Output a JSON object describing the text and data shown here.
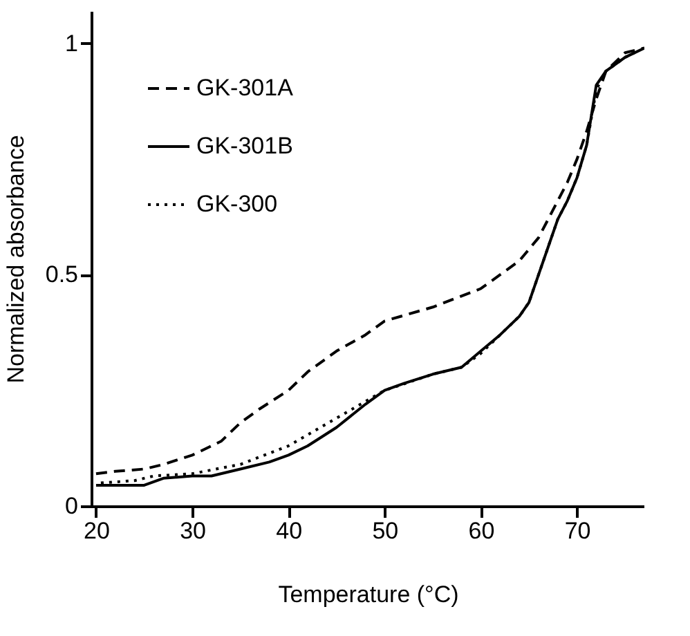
{
  "chart_data": {
    "type": "line",
    "xlabel": "Temperature (°C)",
    "ylabel": "Normalized absorbance",
    "xlim": [
      19.5,
      77
    ],
    "ylim": [
      0,
      1.07
    ],
    "xticks": [
      20,
      30,
      40,
      50,
      60,
      70
    ],
    "yticks": [
      0,
      {
        "value": 0.5,
        "label": "0.5"
      },
      1
    ],
    "legend": "top left",
    "series": [
      {
        "name": "GK-301A",
        "color": "#000000",
        "line_style": "dashed",
        "x": [
          20,
          22,
          25,
          27,
          30,
          33,
          35,
          37,
          40,
          42,
          45,
          48,
          50,
          55,
          60,
          62,
          64,
          66,
          67,
          68,
          69,
          70,
          71,
          72,
          73,
          75,
          77
        ],
        "values": [
          0.07,
          0.075,
          0.08,
          0.09,
          0.11,
          0.14,
          0.18,
          0.21,
          0.25,
          0.29,
          0.335,
          0.37,
          0.4,
          0.43,
          0.47,
          0.5,
          0.53,
          0.58,
          0.62,
          0.66,
          0.7,
          0.75,
          0.81,
          0.88,
          0.94,
          0.98,
          0.99
        ]
      },
      {
        "name": "GK-301B",
        "color": "#000000",
        "line_style": "solid",
        "x": [
          20,
          25,
          27,
          30,
          32,
          35,
          38,
          40,
          42,
          45,
          48,
          50,
          52,
          55,
          58,
          60,
          62,
          64,
          65,
          66,
          67,
          68,
          69,
          70,
          71,
          72,
          73,
          75,
          77
        ],
        "values": [
          0.045,
          0.045,
          0.06,
          0.065,
          0.065,
          0.08,
          0.095,
          0.11,
          0.13,
          0.17,
          0.22,
          0.25,
          0.265,
          0.285,
          0.3,
          0.335,
          0.37,
          0.41,
          0.44,
          0.5,
          0.56,
          0.62,
          0.66,
          0.71,
          0.78,
          0.91,
          0.94,
          0.97,
          0.99
        ]
      },
      {
        "name": "GK-300",
        "color": "#000000",
        "line_style": "dotted",
        "x": [
          20.5,
          24,
          26,
          30,
          35,
          40,
          45,
          50,
          55,
          58,
          60,
          62,
          64,
          65,
          66,
          67,
          68,
          69,
          70,
          71,
          72,
          73,
          75,
          76.5
        ],
        "values": [
          0.05,
          0.055,
          0.065,
          0.07,
          0.09,
          0.13,
          0.19,
          0.25,
          0.285,
          0.3,
          0.33,
          0.37,
          0.41,
          0.44,
          0.5,
          0.56,
          0.62,
          0.66,
          0.71,
          0.78,
          0.9,
          0.94,
          0.97,
          0.985
        ]
      }
    ]
  }
}
